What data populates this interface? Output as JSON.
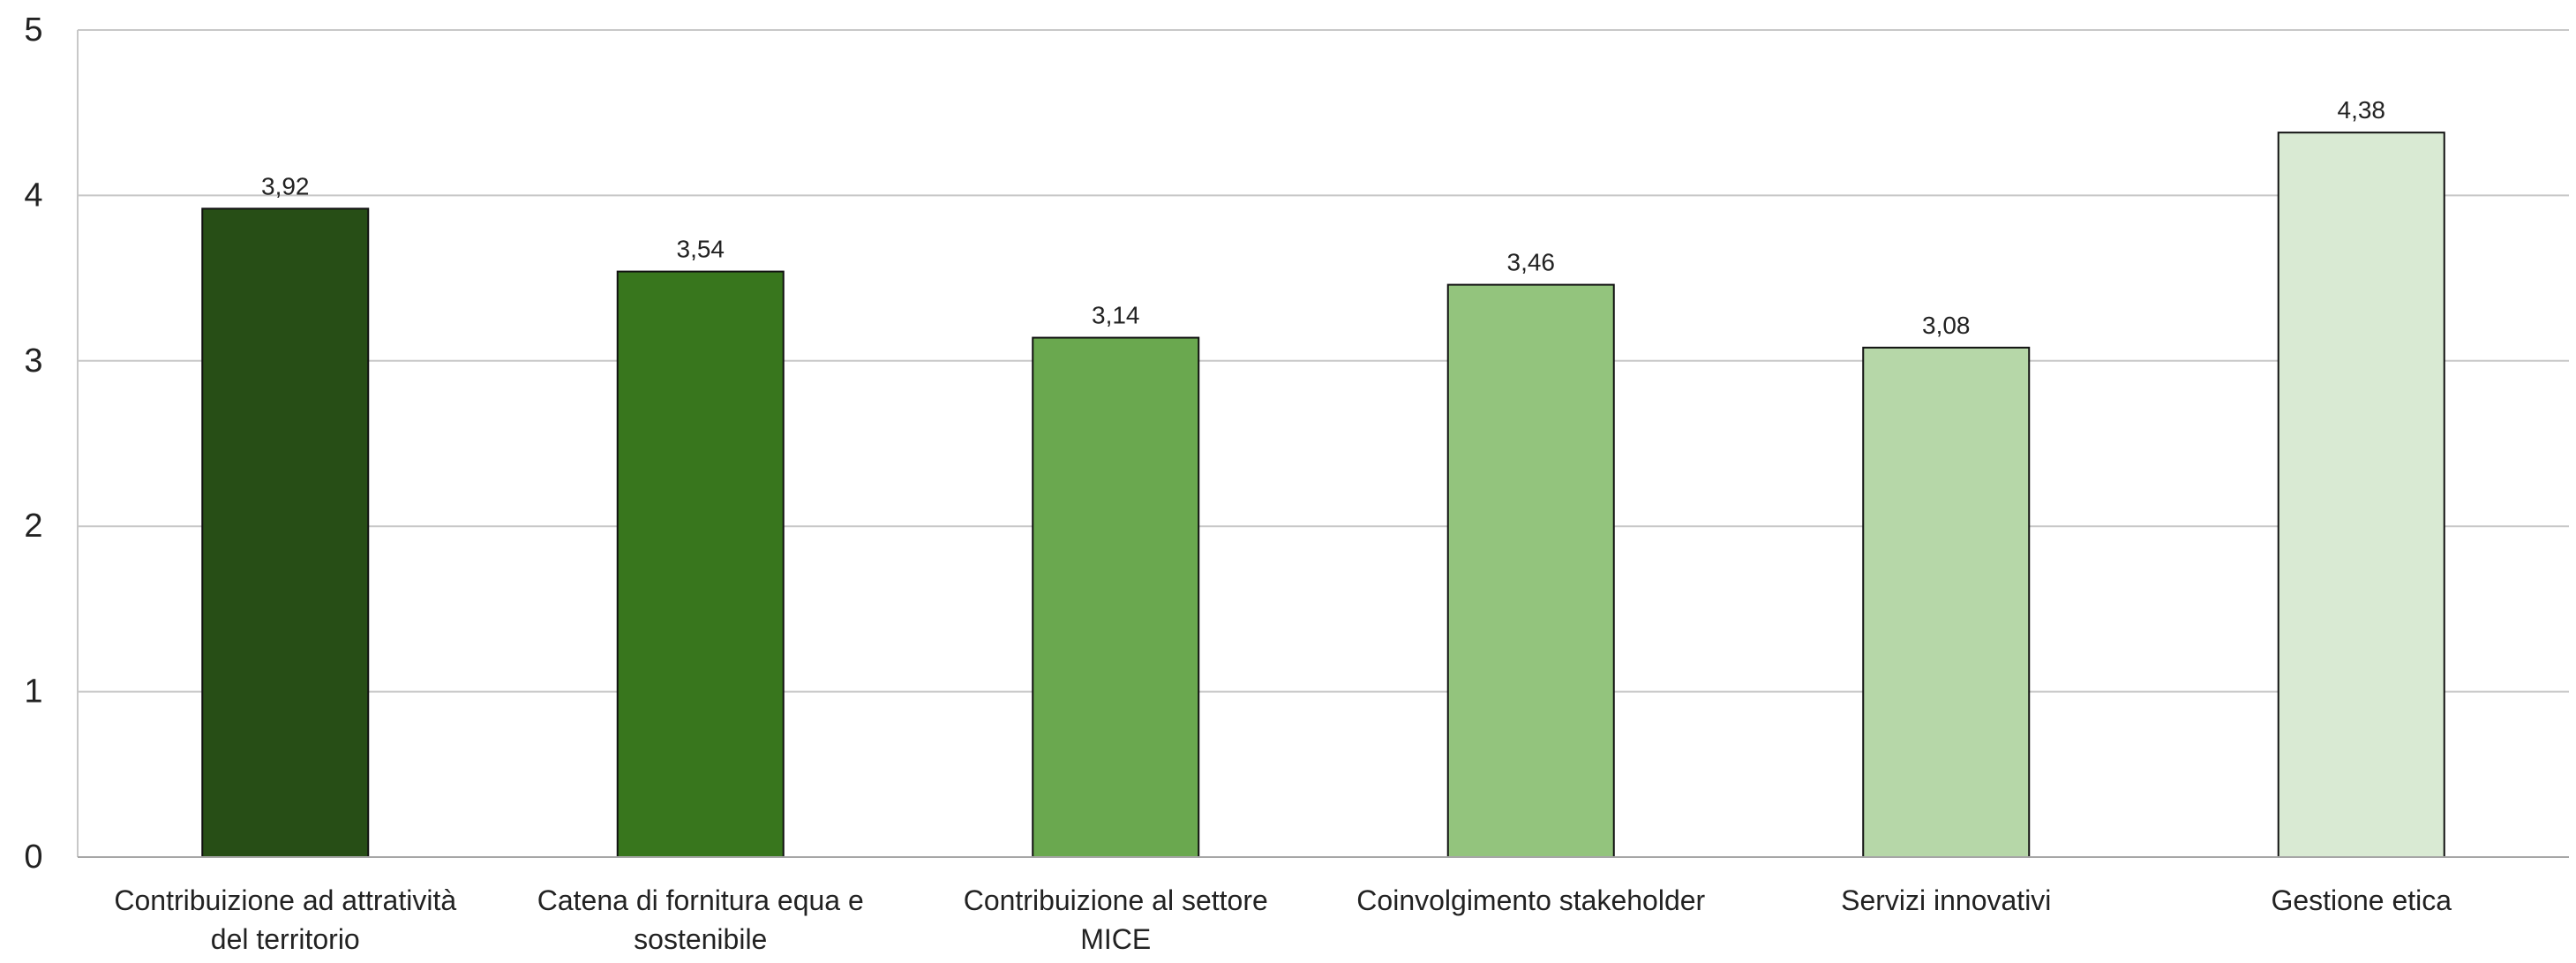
{
  "chart_data": {
    "type": "bar",
    "categories": [
      [
        "Contribuizione ad attratività",
        "del territorio"
      ],
      [
        "Catena di fornitura equa e",
        "sostenibile"
      ],
      [
        "Contribuizione al settore",
        "MICE"
      ],
      [
        "Coinvolgimento stakeholder"
      ],
      [
        "Servizi innovativi"
      ],
      [
        "Gestione etica"
      ]
    ],
    "values": [
      3.92,
      3.54,
      3.14,
      3.46,
      3.08,
      4.38
    ],
    "data_labels": [
      "3,92",
      "3,54",
      "3,14",
      "3,46",
      "3,08",
      "4,38"
    ],
    "colors": [
      "#274e16",
      "#38761d",
      "#6aa84f",
      "#93c47d",
      "#b6d7a8",
      "#d9ead3"
    ],
    "ylim": [
      0,
      5
    ],
    "yticks": [
      "0",
      "1",
      "2",
      "3",
      "4",
      "5"
    ],
    "grid": true,
    "title": "",
    "xlabel": "",
    "ylabel": ""
  }
}
